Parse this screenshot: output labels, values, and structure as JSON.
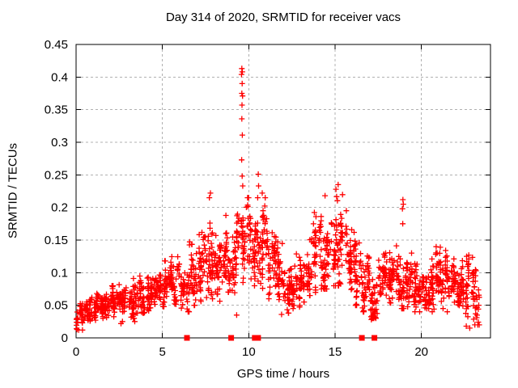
{
  "chart_data": {
    "type": "scatter",
    "title": "Day 314 of 2020, SRMTID for receiver vacs",
    "xlabel": "GPS time / hours",
    "ylabel": "SRMTID / TECUs",
    "xlim": [
      0,
      24
    ],
    "ylim": [
      0,
      0.45
    ],
    "xticks": [
      0,
      5,
      10,
      15,
      20
    ],
    "xtick_labels": [
      "0",
      "5",
      "10",
      "15",
      "20"
    ],
    "yticks": [
      0,
      0.05,
      0.1,
      0.15,
      0.2,
      0.25,
      0.3,
      0.35,
      0.4,
      0.45
    ],
    "ytick_labels": [
      "0",
      "0.05",
      "0.1",
      "0.15",
      "0.2",
      "0.25",
      "0.3",
      "0.35",
      "0.4",
      "0.45"
    ],
    "grid": true,
    "legend": "none",
    "colors": {
      "marker": "#ff0000",
      "grid": "#b0b0b0",
      "axis": "#000000",
      "background": "#ffffff"
    },
    "marker": {
      "shape": "plus",
      "size": 7
    },
    "series_name": "SRMTID",
    "density_bins_format": [
      "x_start_hours",
      "bin_width_hours",
      "y_min",
      "y_max",
      "y_center",
      "n_points"
    ],
    "density_bins": [
      [
        0.0,
        0.5,
        0.012,
        0.055,
        0.032,
        34
      ],
      [
        0.5,
        0.5,
        0.018,
        0.062,
        0.038,
        38
      ],
      [
        1.0,
        0.5,
        0.022,
        0.068,
        0.045,
        40
      ],
      [
        1.5,
        0.5,
        0.028,
        0.075,
        0.05,
        40
      ],
      [
        2.0,
        0.5,
        0.03,
        0.08,
        0.055,
        40
      ],
      [
        2.5,
        0.5,
        0.025,
        0.085,
        0.058,
        40
      ],
      [
        3.0,
        0.5,
        0.03,
        0.092,
        0.06,
        40
      ],
      [
        3.5,
        0.5,
        0.038,
        0.12,
        0.065,
        40
      ],
      [
        4.0,
        0.5,
        0.04,
        0.1,
        0.068,
        40
      ],
      [
        4.5,
        0.5,
        0.045,
        0.11,
        0.072,
        40
      ],
      [
        5.0,
        0.5,
        0.048,
        0.118,
        0.078,
        40
      ],
      [
        5.5,
        0.5,
        0.048,
        0.13,
        0.082,
        40
      ],
      [
        6.0,
        0.5,
        0.04,
        0.14,
        0.088,
        40
      ],
      [
        6.5,
        0.5,
        0.05,
        0.17,
        0.098,
        40
      ],
      [
        7.0,
        0.5,
        0.055,
        0.185,
        0.11,
        40
      ],
      [
        7.5,
        0.5,
        0.06,
        0.22,
        0.125,
        42
      ],
      [
        8.0,
        0.5,
        0.055,
        0.19,
        0.12,
        42
      ],
      [
        8.5,
        0.5,
        0.07,
        0.2,
        0.13,
        42
      ],
      [
        9.0,
        0.5,
        0.06,
        0.19,
        0.128,
        42
      ],
      [
        9.5,
        0.5,
        0.08,
        0.215,
        0.148,
        42
      ],
      [
        10.0,
        0.5,
        0.08,
        0.21,
        0.142,
        42
      ],
      [
        10.5,
        0.5,
        0.07,
        0.215,
        0.138,
        42
      ],
      [
        11.0,
        0.5,
        0.06,
        0.2,
        0.12,
        40
      ],
      [
        11.5,
        0.5,
        0.045,
        0.175,
        0.1,
        40
      ],
      [
        12.0,
        0.5,
        0.038,
        0.12,
        0.08,
        40
      ],
      [
        12.5,
        0.5,
        0.045,
        0.13,
        0.088,
        40
      ],
      [
        13.0,
        0.5,
        0.055,
        0.165,
        0.1,
        40
      ],
      [
        13.5,
        0.5,
        0.065,
        0.2,
        0.118,
        40
      ],
      [
        14.0,
        0.5,
        0.075,
        0.22,
        0.13,
        42
      ],
      [
        14.5,
        0.5,
        0.08,
        0.235,
        0.14,
        42
      ],
      [
        15.0,
        0.5,
        0.08,
        0.23,
        0.14,
        42
      ],
      [
        15.5,
        0.5,
        0.06,
        0.2,
        0.118,
        40
      ],
      [
        16.0,
        0.5,
        0.05,
        0.17,
        0.1,
        40
      ],
      [
        16.5,
        0.5,
        0.04,
        0.14,
        0.082,
        40
      ],
      [
        17.0,
        0.5,
        0.03,
        0.12,
        0.07,
        40
      ],
      [
        17.5,
        0.5,
        0.038,
        0.13,
        0.078,
        40
      ],
      [
        18.0,
        0.5,
        0.04,
        0.14,
        0.08,
        40
      ],
      [
        18.5,
        0.5,
        0.045,
        0.175,
        0.09,
        40
      ],
      [
        19.0,
        0.5,
        0.04,
        0.13,
        0.078,
        40
      ],
      [
        19.5,
        0.5,
        0.04,
        0.12,
        0.075,
        40
      ],
      [
        20.0,
        0.5,
        0.045,
        0.13,
        0.08,
        40
      ],
      [
        20.5,
        0.5,
        0.04,
        0.14,
        0.082,
        40
      ],
      [
        21.0,
        0.5,
        0.045,
        0.15,
        0.088,
        40
      ],
      [
        21.5,
        0.5,
        0.04,
        0.13,
        0.08,
        40
      ],
      [
        22.0,
        0.5,
        0.03,
        0.13,
        0.075,
        40
      ],
      [
        22.5,
        0.5,
        0.02,
        0.13,
        0.07,
        40
      ],
      [
        23.0,
        0.35,
        0.02,
        0.115,
        0.06,
        28
      ]
    ],
    "notable_points": [
      [
        9.6,
        0.413
      ],
      [
        9.63,
        0.408
      ],
      [
        9.58,
        0.404
      ],
      [
        9.62,
        0.39
      ],
      [
        9.6,
        0.375
      ],
      [
        9.64,
        0.371
      ],
      [
        9.61,
        0.357
      ],
      [
        9.6,
        0.336
      ],
      [
        9.63,
        0.311
      ],
      [
        9.59,
        0.273
      ],
      [
        9.62,
        0.248
      ],
      [
        9.65,
        0.233
      ],
      [
        10.55,
        0.251
      ],
      [
        10.57,
        0.233
      ],
      [
        10.52,
        0.215
      ],
      [
        10.78,
        0.222
      ],
      [
        7.78,
        0.222
      ],
      [
        7.72,
        0.215
      ],
      [
        14.42,
        0.218
      ],
      [
        15.18,
        0.235
      ],
      [
        15.05,
        0.228
      ],
      [
        18.93,
        0.212
      ],
      [
        18.95,
        0.205
      ],
      [
        18.9,
        0.198
      ],
      [
        18.92,
        0.175
      ],
      [
        2.6,
        0.022
      ],
      [
        3.4,
        0.025
      ],
      [
        9.3,
        0.035
      ],
      [
        11.9,
        0.036
      ],
      [
        17.1,
        0.028
      ],
      [
        22.6,
        0.018
      ],
      [
        22.8,
        0.015
      ],
      [
        0.15,
        0.012
      ]
    ],
    "baseline_square_markers_x": [
      6.42,
      8.98,
      10.35,
      10.54,
      16.55,
      17.28
    ]
  }
}
